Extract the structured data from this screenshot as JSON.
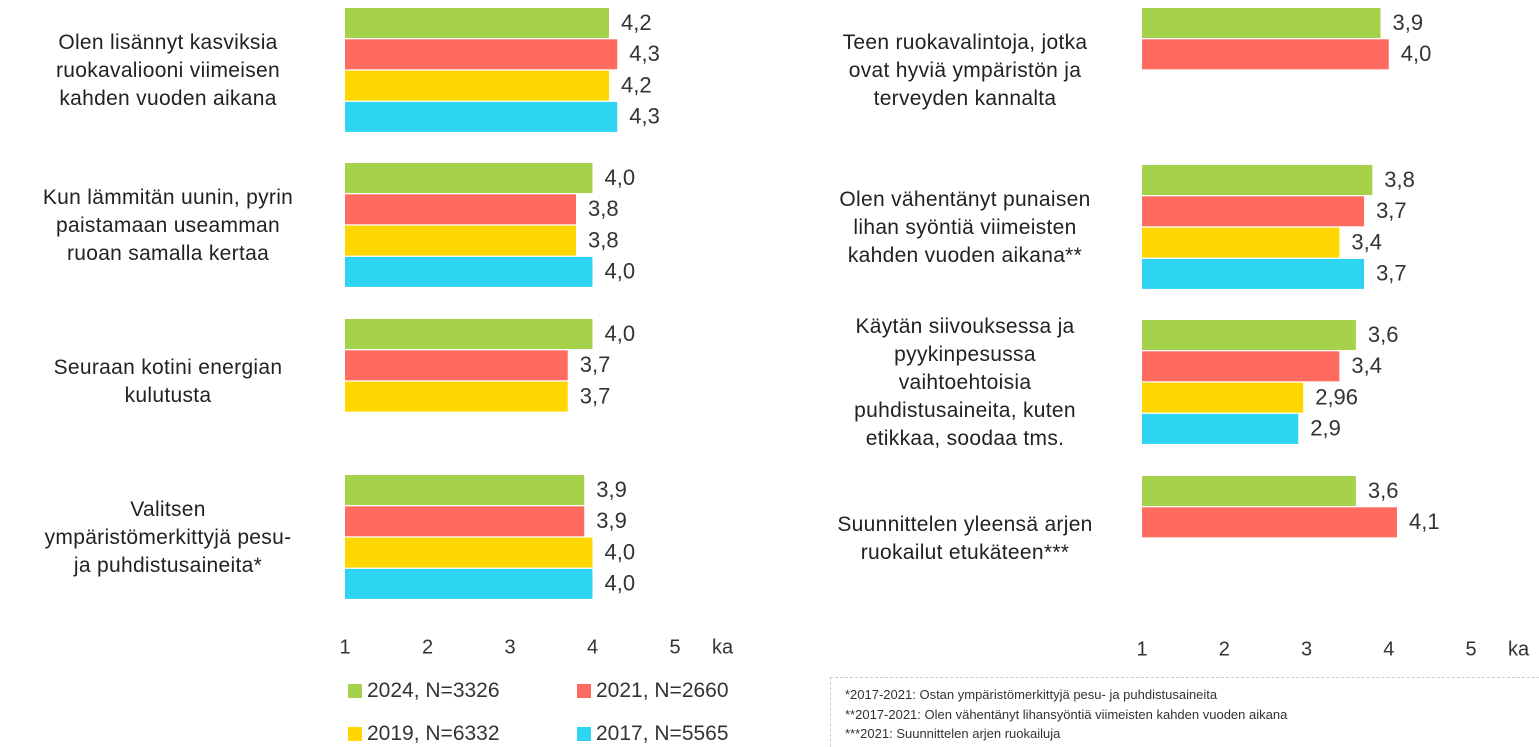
{
  "chart_data": [
    {
      "type": "bar",
      "orientation": "horizontal",
      "categories": [
        "Olen lisännyt kasviksia\nruokavaliooni viimeisen\nkahden vuoden aikana",
        "Kun lämmitän uunin, pyrin\npaistamaan useamman\nruoan samalla kertaa",
        "Seuraan kotini energian\nkulutusta",
        "Valitsen\nympäristömerkittyjä pesu-\nja puhdistusaineita*"
      ],
      "series": [
        {
          "name": "2024, N=3326",
          "color": "#a6d14a",
          "values": [
            4.2,
            4.0,
            4.0,
            3.9
          ],
          "value_labels": [
            "4,2",
            "4,0",
            "4,0",
            "3,9"
          ]
        },
        {
          "name": "2021, N=2660",
          "color": "#ff6b5f",
          "values": [
            4.3,
            3.8,
            3.7,
            3.9
          ],
          "value_labels": [
            "4,3",
            "3,8",
            "3,7",
            "3,9"
          ]
        },
        {
          "name": "2019, N=6332",
          "color": "#ffd700",
          "values": [
            4.2,
            3.8,
            3.7,
            4.0
          ],
          "value_labels": [
            "4,2",
            "3,8",
            "3,7",
            "4,0"
          ]
        },
        {
          "name": "2017, N=5565",
          "color": "#2dd5f3",
          "values": [
            4.3,
            4.0,
            null,
            4.0
          ],
          "value_labels": [
            "4,3",
            "4,0",
            null,
            "4,0"
          ]
        }
      ],
      "xlim": [
        1,
        5
      ],
      "xticks": [
        1,
        2,
        3,
        4,
        5
      ],
      "xlabel": "ka",
      "legend": "bottom"
    },
    {
      "type": "bar",
      "orientation": "horizontal",
      "categories": [
        "Teen ruokavalintoja, jotka\novat hyviä ympäristön ja\nterveyden kannalta",
        "Olen vähentänyt punaisen\nlihan syöntiä viimeisten\nkahden vuoden aikana**",
        "Käytän siivouksessa ja\npyykinpesussa\nvaihtoehtoisia\npuhdistusaineita, kuten\netikkaa, soodaa tms.",
        "Suunnittelen yleensä arjen\nruokailut etukäteen***"
      ],
      "series": [
        {
          "color": "#a6d14a",
          "values": [
            3.9,
            3.8,
            3.6,
            3.6
          ],
          "value_labels": [
            "3,9",
            "3,8",
            "3,6",
            "3,6"
          ]
        },
        {
          "color": "#ff6b5f",
          "values": [
            4.0,
            3.7,
            3.4,
            4.1
          ],
          "value_labels": [
            "4,0",
            "3,7",
            "3,4",
            "4,1"
          ]
        },
        {
          "color": "#ffd700",
          "values": [
            null,
            3.4,
            2.96,
            null
          ],
          "value_labels": [
            null,
            "3,4",
            "2,96",
            null
          ]
        },
        {
          "color": "#2dd5f3",
          "values": [
            null,
            3.7,
            2.9,
            null
          ],
          "value_labels": [
            null,
            "3,7",
            "2,9",
            null
          ]
        }
      ],
      "xlim": [
        1,
        5
      ],
      "xticks": [
        1,
        2,
        3,
        4,
        5
      ],
      "xlabel": "ka",
      "footnotes": [
        "*2017-2021: Ostan ympäristömerkittyjä pesu- ja puhdistusaineita",
        "**2017-2021: Olen vähentänyt lihansyöntiä viimeisten kahden vuoden aikana",
        "***2021: Suunnittelen arjen ruokailuja"
      ]
    }
  ]
}
